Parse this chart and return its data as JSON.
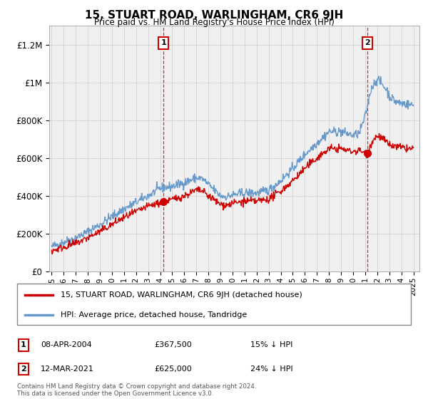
{
  "title": "15, STUART ROAD, WARLINGHAM, CR6 9JH",
  "subtitle": "Price paid vs. HM Land Registry's House Price Index (HPI)",
  "property_label": "15, STUART ROAD, WARLINGHAM, CR6 9JH (detached house)",
  "hpi_label": "HPI: Average price, detached house, Tandridge",
  "sale1_date": "08-APR-2004",
  "sale1_price": 367500,
  "sale1_note": "15% ↓ HPI",
  "sale2_date": "12-MAR-2021",
  "sale2_price": 625000,
  "sale2_note": "24% ↓ HPI",
  "sale1_x": 2004.27,
  "sale2_x": 2021.19,
  "property_color": "#cc0000",
  "hpi_color": "#6699cc",
  "vline_color": "#cc0000",
  "grid_color": "#cccccc",
  "bg_color": "#f0f0f0",
  "ylim": [
    0,
    1300000
  ],
  "xlim_start": 1994.8,
  "xlim_end": 2025.5,
  "footnote": "Contains HM Land Registry data © Crown copyright and database right 2024.\nThis data is licensed under the Open Government Licence v3.0.",
  "yticks": [
    0,
    200000,
    400000,
    600000,
    800000,
    1000000,
    1200000
  ],
  "ytick_labels": [
    "£0",
    "£200K",
    "£400K",
    "£600K",
    "£800K",
    "£1M",
    "£1.2M"
  ],
  "xticks": [
    1995,
    1996,
    1997,
    1998,
    1999,
    2000,
    2001,
    2002,
    2003,
    2004,
    2005,
    2006,
    2007,
    2008,
    2009,
    2010,
    2011,
    2012,
    2013,
    2014,
    2015,
    2016,
    2017,
    2018,
    2019,
    2020,
    2021,
    2022,
    2023,
    2024,
    2025
  ]
}
